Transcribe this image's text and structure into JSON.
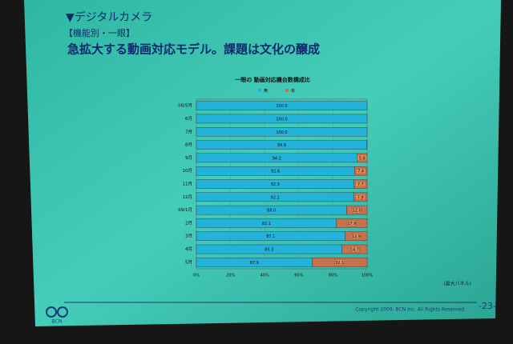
{
  "slide": {
    "heading": "▼デジタルカメラ",
    "subheading": "【機能別・一眼】",
    "headline": "急拡大する動画対応モデル。課題は文化の醸成",
    "note": "(最大パネル)",
    "copyright": "Copyright 2009, BCN Inc. All Rights Reserved.",
    "page": "-23-",
    "logo": "BCN"
  },
  "chart_data": {
    "type": "stacked_barh",
    "title": "一眼の 動画対応機台数構成比",
    "categories": [
      "08/5月",
      "6月",
      "7月",
      "8月",
      "9月",
      "10月",
      "11月",
      "12月",
      "09/1月",
      "2月",
      "3月",
      "4月",
      "5月"
    ],
    "series": [
      {
        "name": "無",
        "color": "#22b2da",
        "values": [
          100,
          100,
          100,
          99.9,
          94.2,
          92.6,
          92.3,
          92.1,
          88,
          82.1,
          87.1,
          85.3,
          67.9
        ],
        "value_labels": [
          "100.0",
          "100.0",
          "100.0",
          "99.9",
          "94.2",
          "92.6",
          "92.3",
          "92.1",
          "88.0",
          "82.1",
          "87.1",
          "85.3",
          "67.9"
        ]
      },
      {
        "name": "有",
        "color": "#c9714c",
        "values": [
          0,
          0,
          0,
          0.1,
          5.8,
          7.4,
          7.7,
          7.9,
          12,
          17.9,
          12.9,
          14.7,
          32.1
        ],
        "value_labels": [
          null,
          null,
          null,
          null,
          "5.8",
          "7.4",
          "7.7",
          "7.9",
          "12.0",
          "17.9",
          "12.9",
          "14.7",
          "32.1"
        ]
      }
    ],
    "xlim": [
      0,
      100
    ],
    "xticks": [
      {
        "value": 0,
        "label": "0%"
      },
      {
        "value": 20,
        "label": "20%"
      },
      {
        "value": 40,
        "label": "40%"
      },
      {
        "value": 60,
        "label": "60%"
      },
      {
        "value": 80,
        "label": "80%"
      },
      {
        "value": 100,
        "label": "100%"
      }
    ],
    "grid": true,
    "legend": "top"
  }
}
